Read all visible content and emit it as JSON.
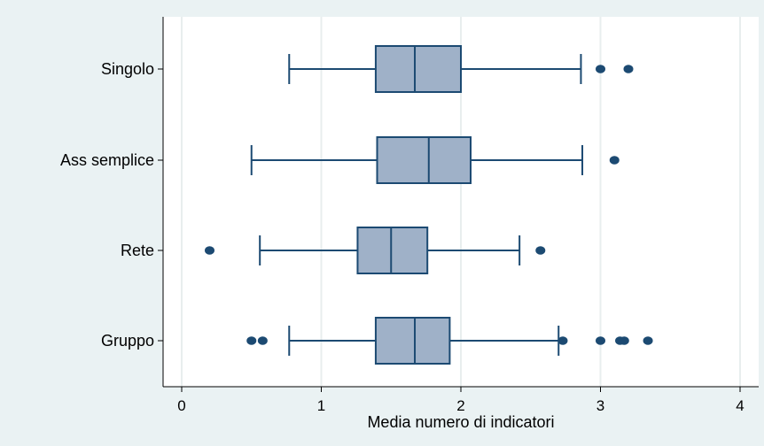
{
  "chart_data": {
    "type": "boxplot",
    "orientation": "horizontal",
    "title": "",
    "xlabel": "Media numero di indicatori",
    "ylabel": "",
    "xlim": [
      0,
      4
    ],
    "x_ticks": [
      0,
      1,
      2,
      3,
      4
    ],
    "x_tick_labels": [
      "0",
      "1",
      "2",
      "3",
      "4"
    ],
    "grid": "vertical",
    "legend": "none",
    "categories": [
      "Singolo",
      "Ass semplice",
      "Rete",
      "Gruppo"
    ],
    "boxes": [
      {
        "category": "Singolo",
        "whisker_low": 0.77,
        "q1": 1.39,
        "median": 1.67,
        "q3": 2.0,
        "whisker_high": 2.86,
        "outliers": [
          3.0,
          3.2
        ]
      },
      {
        "category": "Ass semplice",
        "whisker_low": 0.5,
        "q1": 1.4,
        "median": 1.77,
        "q3": 2.07,
        "whisker_high": 2.87,
        "outliers": [
          3.1
        ]
      },
      {
        "category": "Rete",
        "whisker_low": 0.56,
        "q1": 1.26,
        "median": 1.5,
        "q3": 1.76,
        "whisker_high": 2.42,
        "outliers": [
          0.2,
          2.57
        ]
      },
      {
        "category": "Gruppo",
        "whisker_low": 0.77,
        "q1": 1.39,
        "median": 1.67,
        "q3": 1.92,
        "whisker_high": 2.7,
        "outliers": [
          0.5,
          0.58,
          2.73,
          3.0,
          3.14,
          3.17,
          3.34
        ]
      }
    ],
    "colors": {
      "background": "#eaf2f3",
      "plot_area": "#ffffff",
      "box_fill": "#9fb1c8",
      "box_line": "#1c4a72",
      "outlier": "#1c4a72",
      "grid": "#e8eeee"
    }
  }
}
